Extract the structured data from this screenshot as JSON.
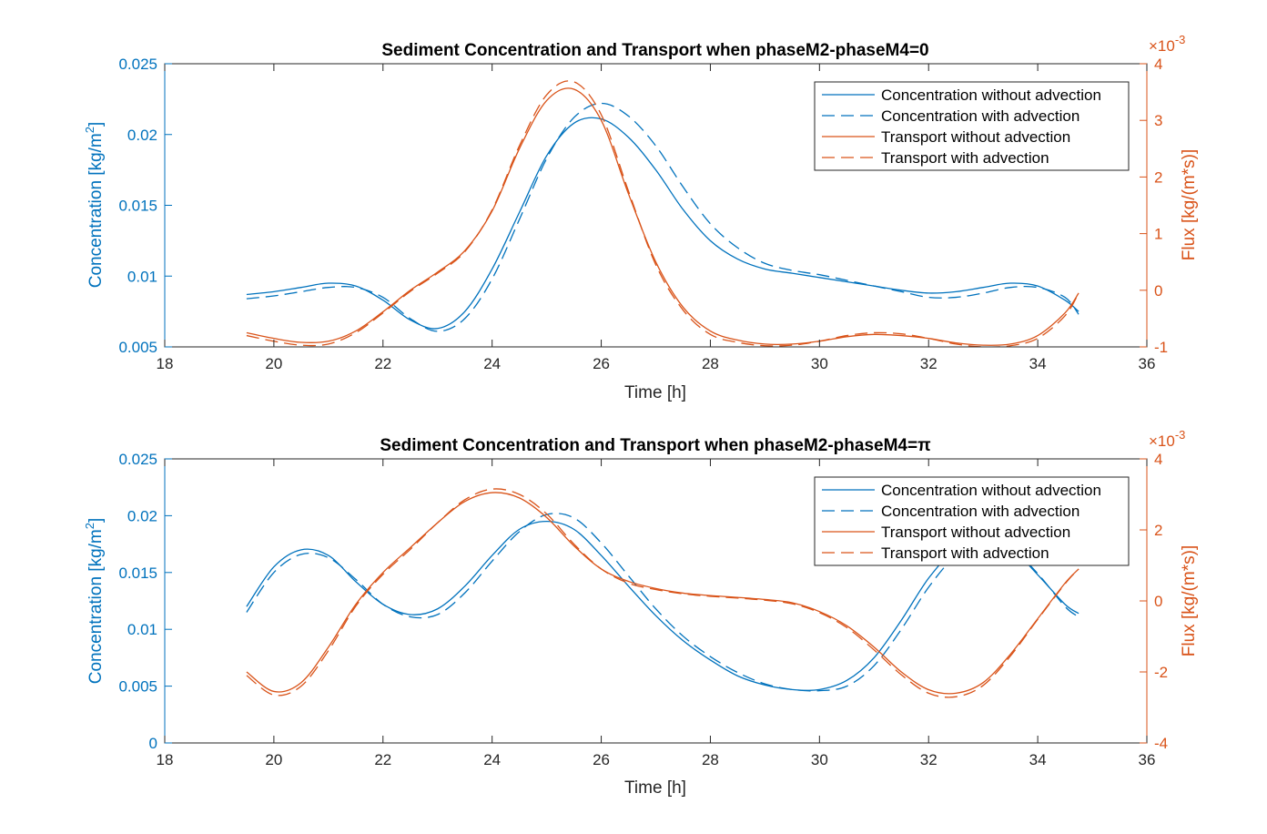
{
  "colors": {
    "concentration": "#0072BD",
    "transport": "#D95319",
    "axis": "#262626"
  },
  "chart_data": [
    {
      "type": "line",
      "title": "Sediment Concentration and Transport when phaseM2-phaseM4=0",
      "xlabel": "Time [h]",
      "ylabel_left_base": "Concentration [kg/m",
      "ylabel_left_sup": "2",
      "ylabel_left_close": "]",
      "ylabel_right": "Flux [kg/(m*s)]",
      "right_exponent_base": "×10",
      "right_exponent_power": "-3",
      "xlim": [
        18,
        36
      ],
      "ylim_left": [
        0.005,
        0.025
      ],
      "ylim_right": [
        -1,
        4
      ],
      "xticks": [
        "18",
        "20",
        "22",
        "24",
        "26",
        "28",
        "30",
        "32",
        "34",
        "36"
      ],
      "yticks_left": [
        "0.005",
        "0.01",
        "0.015",
        "0.02",
        "0.025"
      ],
      "yticks_right": [
        "-1",
        "0",
        "1",
        "2",
        "3",
        "4"
      ],
      "legend_position": "top-right",
      "x": [
        19.5,
        20,
        20.5,
        21,
        21.5,
        22,
        22.5,
        23,
        23.5,
        24,
        24.5,
        25,
        25.5,
        26,
        26.5,
        27,
        27.5,
        28,
        28.5,
        29,
        29.5,
        30,
        30.5,
        31,
        31.5,
        32,
        32.5,
        33,
        33.5,
        34,
        34.5,
        34.75
      ],
      "series": [
        {
          "name": "Concentration without advection",
          "axis": "left",
          "style": "solid",
          "color": "#0072BD",
          "values": [
            0.0087,
            0.0089,
            0.0092,
            0.0095,
            0.0093,
            0.0083,
            0.0069,
            0.0063,
            0.0075,
            0.0105,
            0.0145,
            0.0185,
            0.0208,
            0.0211,
            0.0198,
            0.0175,
            0.0147,
            0.0125,
            0.0112,
            0.0105,
            0.0102,
            0.0099,
            0.0096,
            0.0093,
            0.009,
            0.0088,
            0.0089,
            0.0092,
            0.0095,
            0.0093,
            0.0083,
            0.0075
          ]
        },
        {
          "name": "Concentration with advection",
          "axis": "left",
          "style": "dashed",
          "color": "#0072BD",
          "values": [
            0.0084,
            0.0086,
            0.0089,
            0.0092,
            0.0092,
            0.0085,
            0.007,
            0.0061,
            0.007,
            0.0098,
            0.014,
            0.0183,
            0.0212,
            0.0222,
            0.0213,
            0.0192,
            0.0163,
            0.0137,
            0.012,
            0.0109,
            0.0104,
            0.0101,
            0.0097,
            0.0093,
            0.0089,
            0.0085,
            0.0085,
            0.0088,
            0.0092,
            0.0092,
            0.0085,
            0.0073
          ]
        },
        {
          "name": "Transport without advection",
          "axis": "right",
          "style": "solid",
          "color": "#D95319",
          "values": [
            -0.75,
            -0.85,
            -0.92,
            -0.9,
            -0.72,
            -0.38,
            0.0,
            0.32,
            0.7,
            1.4,
            2.5,
            3.35,
            3.55,
            3.0,
            1.7,
            0.5,
            -0.3,
            -0.72,
            -0.88,
            -0.95,
            -0.95,
            -0.9,
            -0.82,
            -0.78,
            -0.8,
            -0.85,
            -0.93,
            -0.97,
            -0.95,
            -0.8,
            -0.4,
            -0.05
          ]
        },
        {
          "name": "Transport with advection",
          "axis": "right",
          "style": "dashed",
          "color": "#D95319",
          "values": [
            -0.8,
            -0.9,
            -0.97,
            -0.95,
            -0.75,
            -0.4,
            -0.02,
            0.3,
            0.68,
            1.42,
            2.55,
            3.45,
            3.68,
            3.1,
            1.75,
            0.45,
            -0.35,
            -0.78,
            -0.92,
            -0.98,
            -0.97,
            -0.9,
            -0.8,
            -0.75,
            -0.77,
            -0.85,
            -0.95,
            -1.0,
            -0.98,
            -0.85,
            -0.45,
            -0.05
          ]
        }
      ]
    },
    {
      "type": "line",
      "title": "Sediment Concentration and Transport when phaseM2-phaseM4=π",
      "xlabel": "Time [h]",
      "ylabel_left_base": "Concentration [kg/m",
      "ylabel_left_sup": "2",
      "ylabel_left_close": "]",
      "ylabel_right": "Flux [kg/(m*s)]",
      "right_exponent_base": "×10",
      "right_exponent_power": "-3",
      "xlim": [
        18,
        36
      ],
      "ylim_left": [
        0,
        0.025
      ],
      "ylim_right": [
        -4,
        4
      ],
      "xticks": [
        "18",
        "20",
        "22",
        "24",
        "26",
        "28",
        "30",
        "32",
        "34",
        "36"
      ],
      "yticks_left": [
        "0",
        "0.005",
        "0.01",
        "0.015",
        "0.02",
        "0.025"
      ],
      "yticks_right": [
        "-4",
        "-2",
        "0",
        "2",
        "4"
      ],
      "legend_position": "top-right",
      "x": [
        19.5,
        20,
        20.5,
        21,
        21.5,
        22,
        22.5,
        23,
        23.5,
        24,
        24.5,
        25,
        25.5,
        26,
        26.5,
        27,
        27.5,
        28,
        28.5,
        29,
        29.5,
        30,
        30.5,
        31,
        31.5,
        32,
        32.5,
        33,
        33.5,
        34,
        34.5,
        34.75
      ],
      "series": [
        {
          "name": "Concentration without advection",
          "axis": "left",
          "style": "solid",
          "color": "#0072BD",
          "values": [
            0.012,
            0.0155,
            0.017,
            0.0165,
            0.0142,
            0.0122,
            0.0113,
            0.0118,
            0.0138,
            0.0165,
            0.0188,
            0.0195,
            0.0188,
            0.0165,
            0.0138,
            0.0112,
            0.009,
            0.0073,
            0.0059,
            0.0051,
            0.0047,
            0.0047,
            0.0055,
            0.0075,
            0.0108,
            0.0145,
            0.0171,
            0.0181,
            0.0172,
            0.0148,
            0.0122,
            0.0114
          ]
        },
        {
          "name": "Concentration with advection",
          "axis": "left",
          "style": "dashed",
          "color": "#0072BD",
          "values": [
            0.0115,
            0.015,
            0.0166,
            0.0163,
            0.0144,
            0.0122,
            0.0111,
            0.0113,
            0.0132,
            0.016,
            0.0186,
            0.0201,
            0.0198,
            0.0176,
            0.0147,
            0.0118,
            0.0094,
            0.0076,
            0.0062,
            0.0052,
            0.0047,
            0.0046,
            0.005,
            0.0068,
            0.01,
            0.0137,
            0.0165,
            0.0178,
            0.0172,
            0.0149,
            0.012,
            0.0111
          ]
        },
        {
          "name": "Transport without advection",
          "axis": "right",
          "style": "solid",
          "color": "#D95319",
          "values": [
            -2.0,
            -2.55,
            -2.3,
            -1.3,
            -0.1,
            0.8,
            1.5,
            2.2,
            2.8,
            3.05,
            2.9,
            2.35,
            1.55,
            0.9,
            0.55,
            0.35,
            0.22,
            0.15,
            0.1,
            0.04,
            -0.05,
            -0.3,
            -0.7,
            -1.3,
            -2.0,
            -2.5,
            -2.6,
            -2.3,
            -1.5,
            -0.5,
            0.5,
            0.9
          ]
        },
        {
          "name": "Transport with advection",
          "axis": "right",
          "style": "dashed",
          "color": "#D95319",
          "values": [
            -2.1,
            -2.65,
            -2.4,
            -1.4,
            -0.15,
            0.75,
            1.45,
            2.2,
            2.85,
            3.15,
            3.0,
            2.45,
            1.6,
            0.9,
            0.5,
            0.32,
            0.2,
            0.13,
            0.08,
            0.02,
            -0.08,
            -0.33,
            -0.75,
            -1.38,
            -2.08,
            -2.6,
            -2.7,
            -2.38,
            -1.55,
            -0.52,
            0.48,
            0.9
          ]
        }
      ]
    }
  ]
}
